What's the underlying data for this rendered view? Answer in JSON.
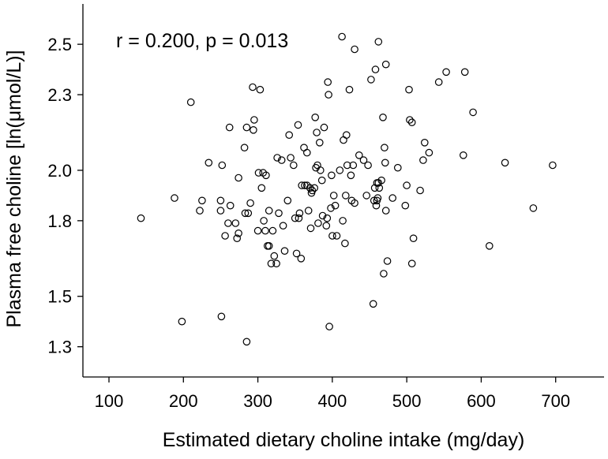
{
  "chart_data": {
    "type": "scatter",
    "title": "",
    "annotation": "r = 0.200, p = 0.013",
    "xlabel": "Estimated dietary choline intake (mg/day)",
    "ylabel": "Plasma free choline [ln(μmol/L)]",
    "xlim": [
      65,
      765
    ],
    "ylim": [
      1.18,
      2.66
    ],
    "xticks": [
      100,
      200,
      300,
      400,
      500,
      600,
      700
    ],
    "yticks": [
      1.3,
      1.5,
      1.8,
      2.0,
      2.3,
      2.5
    ],
    "ytick_labels": [
      "1.3",
      "1.5",
      "1.8",
      "2.0",
      "2.3",
      "2.5"
    ],
    "grid": false,
    "legend": "none",
    "points": [
      [
        143,
        1.81
      ],
      [
        188,
        1.89
      ],
      [
        198,
        1.4
      ],
      [
        210,
        2.27
      ],
      [
        222,
        1.84
      ],
      [
        225,
        1.88
      ],
      [
        234,
        2.03
      ],
      [
        250,
        1.84
      ],
      [
        250,
        1.88
      ],
      [
        251,
        1.42
      ],
      [
        252,
        2.02
      ],
      [
        256,
        1.74
      ],
      [
        260,
        1.79
      ],
      [
        262,
        2.17
      ],
      [
        263,
        1.86
      ],
      [
        270,
        1.79
      ],
      [
        272,
        1.73
      ],
      [
        274,
        1.75
      ],
      [
        274,
        1.97
      ],
      [
        282,
        2.09
      ],
      [
        283,
        1.83
      ],
      [
        285,
        1.32
      ],
      [
        287,
        1.83
      ],
      [
        285,
        2.17
      ],
      [
        290,
        1.87
      ],
      [
        293,
        2.33
      ],
      [
        294,
        2.16
      ],
      [
        295,
        2.2
      ],
      [
        300,
        1.76
      ],
      [
        301,
        1.99
      ],
      [
        303,
        2.32
      ],
      [
        305,
        1.93
      ],
      [
        307,
        1.99
      ],
      [
        308,
        1.8
      ],
      [
        310,
        1.76
      ],
      [
        311,
        1.98
      ],
      [
        313,
        1.7
      ],
      [
        315,
        1.7
      ],
      [
        315,
        1.84
      ],
      [
        318,
        1.63
      ],
      [
        320,
        1.76
      ],
      [
        322,
        1.66
      ],
      [
        325,
        1.63
      ],
      [
        326,
        2.05
      ],
      [
        328,
        1.83
      ],
      [
        332,
        2.04
      ],
      [
        334,
        1.78
      ],
      [
        336,
        1.68
      ],
      [
        340,
        1.88
      ],
      [
        342,
        2.14
      ],
      [
        344,
        2.05
      ],
      [
        348,
        2.02
      ],
      [
        350,
        1.81
      ],
      [
        352,
        1.67
      ],
      [
        354,
        2.18
      ],
      [
        355,
        1.81
      ],
      [
        356,
        1.83
      ],
      [
        358,
        1.65
      ],
      [
        359,
        1.94
      ],
      [
        362,
        2.09
      ],
      [
        363,
        1.94
      ],
      [
        366,
        2.07
      ],
      [
        366,
        1.94
      ],
      [
        368,
        1.84
      ],
      [
        370,
        1.93
      ],
      [
        371,
        1.77
      ],
      [
        372,
        1.91
      ],
      [
        373,
        1.92
      ],
      [
        376,
        1.93
      ],
      [
        377,
        2.21
      ],
      [
        378,
        2.01
      ],
      [
        379,
        2.15
      ],
      [
        380,
        2.02
      ],
      [
        381,
        1.79
      ],
      [
        383,
        2.11
      ],
      [
        384,
        2.0
      ],
      [
        386,
        1.96
      ],
      [
        387,
        1.82
      ],
      [
        389,
        2.17
      ],
      [
        392,
        1.78
      ],
      [
        393,
        1.81
      ],
      [
        394,
        2.35
      ],
      [
        395,
        2.3
      ],
      [
        396,
        1.38
      ],
      [
        398,
        1.85
      ],
      [
        399,
        1.98
      ],
      [
        400,
        1.74
      ],
      [
        402,
        1.9
      ],
      [
        404,
        1.86
      ],
      [
        406,
        1.74
      ],
      [
        410,
        2.0
      ],
      [
        413,
        2.53
      ],
      [
        414,
        1.8
      ],
      [
        415,
        2.12
      ],
      [
        417,
        1.71
      ],
      [
        418,
        1.9
      ],
      [
        419,
        2.14
      ],
      [
        420,
        2.02
      ],
      [
        423,
        2.32
      ],
      [
        425,
        1.98
      ],
      [
        426,
        1.88
      ],
      [
        428,
        2.02
      ],
      [
        430,
        2.48
      ],
      [
        430,
        1.87
      ],
      [
        436,
        2.06
      ],
      [
        442,
        2.04
      ],
      [
        446,
        1.9
      ],
      [
        448,
        2.02
      ],
      [
        452,
        2.36
      ],
      [
        455,
        1.47
      ],
      [
        456,
        1.88
      ],
      [
        457,
        1.93
      ],
      [
        458,
        2.4
      ],
      [
        459,
        1.86
      ],
      [
        460,
        1.95
      ],
      [
        460,
        1.88
      ],
      [
        461,
        1.89
      ],
      [
        462,
        2.51
      ],
      [
        462,
        1.95
      ],
      [
        463,
        1.93
      ],
      [
        466,
        1.96
      ],
      [
        468,
        2.21
      ],
      [
        469,
        1.59
      ],
      [
        470,
        2.09
      ],
      [
        471,
        2.03
      ],
      [
        472,
        2.42
      ],
      [
        472,
        1.84
      ],
      [
        474,
        1.64
      ],
      [
        481,
        1.89
      ],
      [
        488,
        2.01
      ],
      [
        498,
        1.86
      ],
      [
        500,
        1.94
      ],
      [
        503,
        2.32
      ],
      [
        504,
        2.2
      ],
      [
        507,
        2.19
      ],
      [
        507,
        1.63
      ],
      [
        509,
        1.73
      ],
      [
        518,
        1.92
      ],
      [
        522,
        2.04
      ],
      [
        524,
        2.11
      ],
      [
        530,
        2.07
      ],
      [
        543,
        2.35
      ],
      [
        553,
        2.39
      ],
      [
        576,
        2.06
      ],
      [
        578,
        2.39
      ],
      [
        589,
        2.23
      ],
      [
        611,
        1.7
      ],
      [
        632,
        2.03
      ],
      [
        670,
        1.85
      ],
      [
        696,
        2.02
      ]
    ]
  }
}
